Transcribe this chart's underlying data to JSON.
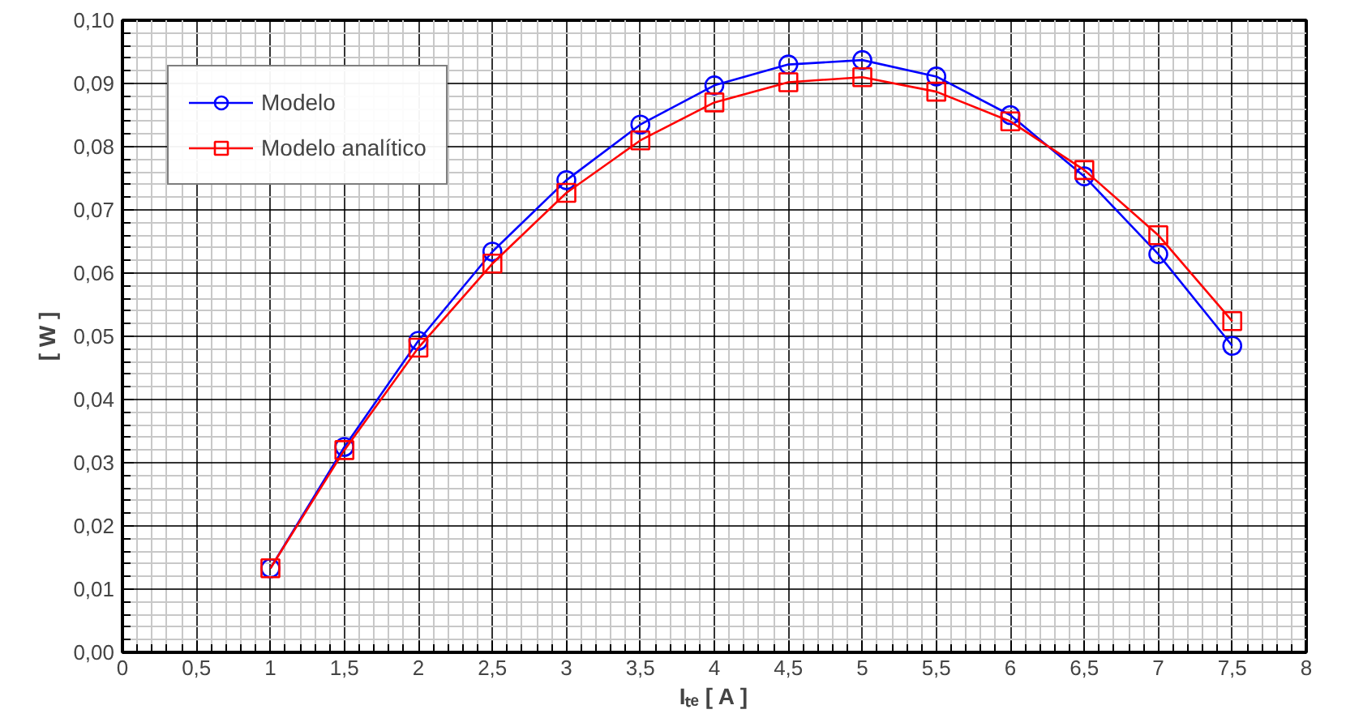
{
  "chart_data": {
    "type": "line",
    "xlabel": "Iₜₑ [ A ]",
    "ylabel": "[ W ]",
    "x": [
      1,
      1.5,
      2,
      2.5,
      3,
      3.5,
      4,
      4.5,
      5,
      5.5,
      6,
      6.5,
      7,
      7.5
    ],
    "series": [
      {
        "name": "Modelo",
        "color": "#0000ff",
        "marker": "circle",
        "values": [
          0.0133,
          0.0325,
          0.0493,
          0.0634,
          0.0747,
          0.0835,
          0.0897,
          0.093,
          0.0937,
          0.0911,
          0.085,
          0.0753,
          0.063,
          0.0485
        ]
      },
      {
        "name": "Modelo analítico",
        "color": "#ff0000",
        "marker": "square",
        "values": [
          0.0133,
          0.032,
          0.0482,
          0.0615,
          0.0727,
          0.081,
          0.087,
          0.0902,
          0.091,
          0.0887,
          0.084,
          0.0763,
          0.066,
          0.0524
        ]
      }
    ],
    "xlim": [
      0,
      8
    ],
    "xticks": [
      0,
      {
        "value": 0.5,
        "label": "0,5"
      },
      1,
      {
        "value": 1.5,
        "label": "1,5"
      },
      2,
      {
        "value": 2.5,
        "label": "2,5"
      },
      3,
      {
        "value": 3.5,
        "label": "3,5"
      },
      4,
      {
        "value": 4.5,
        "label": "4,5"
      },
      5,
      {
        "value": 5.5,
        "label": "5,5"
      },
      6,
      {
        "value": 6.5,
        "label": "6,5"
      },
      7,
      {
        "value": 7.5,
        "label": "7,5"
      },
      8
    ],
    "ylim": [
      0,
      0.1
    ],
    "yticks": [
      {
        "value": 0,
        "label": "0,00"
      },
      {
        "value": 0.01,
        "label": "0,01"
      },
      {
        "value": 0.02,
        "label": "0,02"
      },
      {
        "value": 0.03,
        "label": "0,03"
      },
      {
        "value": 0.04,
        "label": "0,04"
      },
      {
        "value": 0.05,
        "label": "0,05"
      },
      {
        "value": 0.06,
        "label": "0,06"
      },
      {
        "value": 0.07,
        "label": "0,07"
      },
      {
        "value": 0.08,
        "label": "0,08"
      },
      {
        "value": 0.09,
        "label": "0,09"
      },
      {
        "value": 0.1,
        "label": "0,10"
      }
    ],
    "grid": true,
    "legend": "top left",
    "line_style": "solid"
  }
}
